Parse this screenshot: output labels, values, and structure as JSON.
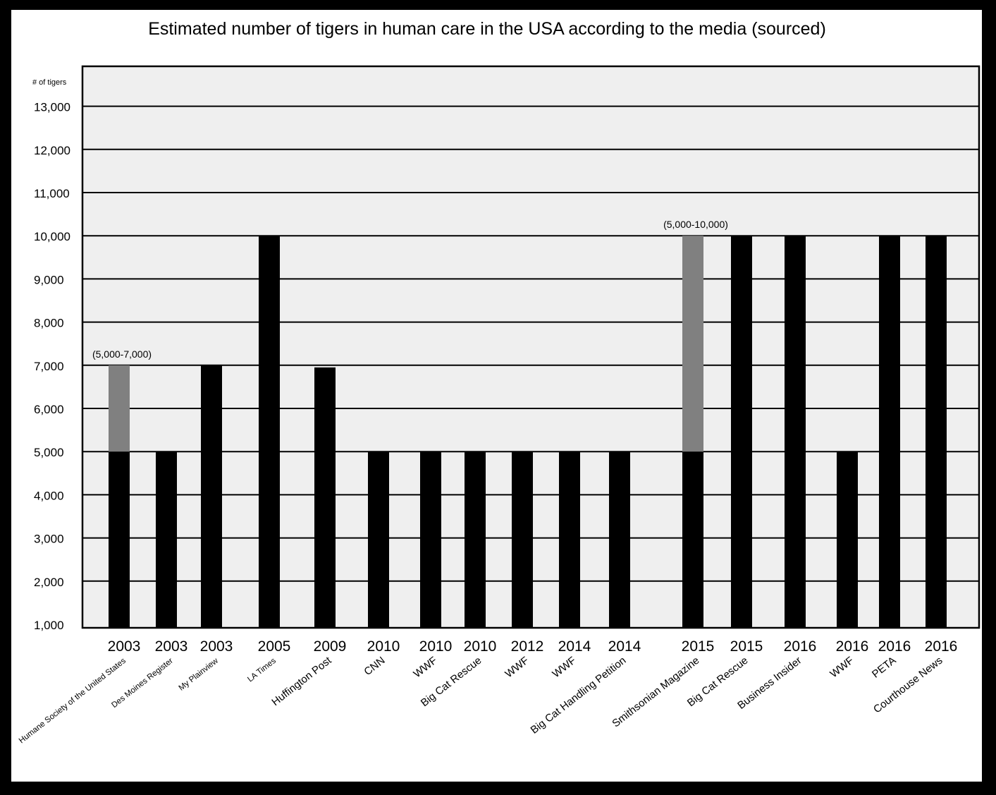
{
  "chart_data": {
    "type": "bar",
    "title": "Estimated number of tigers in human care in the USA according to the media (sourced)",
    "ylabel": "# of tigers",
    "ylim": [
      1000,
      14000
    ],
    "yticks": [
      "13,000",
      "12,000",
      "11,000",
      "10,000",
      "9,000",
      "8,000",
      "7,000",
      "6,000",
      "5,000",
      "4,000",
      "3,000",
      "2,000",
      "1,000"
    ],
    "ytick_values": [
      13000,
      12000,
      11000,
      10000,
      9000,
      8000,
      7000,
      6000,
      5000,
      4000,
      3000,
      2000,
      1000
    ],
    "grid": true,
    "bars": [
      {
        "year": "2003",
        "source": "Humane Society of the United States",
        "value": 5000,
        "range_top": 7000,
        "annotation": "(5,000-7,000)"
      },
      {
        "year": "2003",
        "source": "Des Moines Register",
        "value": 5000
      },
      {
        "year": "2003",
        "source": "My Plainview",
        "value": 7000
      },
      {
        "year": "2005",
        "source": "LA Times",
        "value": 10000
      },
      {
        "year": "2009",
        "source": "Huffington Post",
        "value": 6950
      },
      {
        "year": "2010",
        "source": "CNN",
        "value": 5000
      },
      {
        "year": "2010",
        "source": "WWF",
        "value": 5000
      },
      {
        "year": "2010",
        "source": "Big Cat Rescue",
        "value": 5000
      },
      {
        "year": "2012",
        "source": "WWF",
        "value": 5000
      },
      {
        "year": "2014",
        "source": "WWF",
        "value": 5000
      },
      {
        "year": "2014",
        "source": "Big Cat Handling Petition",
        "value": 5000
      },
      {
        "year": "2015",
        "source": "Smithsonian Magazine",
        "value": 5000,
        "range_top": 10000,
        "annotation": "(5,000-10,000)"
      },
      {
        "year": "2015",
        "source": "Big Cat Rescue",
        "value": 10000
      },
      {
        "year": "2016",
        "source": "Business Insider",
        "value": 10000
      },
      {
        "year": "2016",
        "source": "WWF",
        "value": 5000
      },
      {
        "year": "2016",
        "source": "PETA",
        "value": 10000
      },
      {
        "year": "2016",
        "source": "Courthouse News",
        "value": 10000
      }
    ],
    "colors": {
      "bar": "#000000",
      "range": "#808080",
      "plot_background": "#efefef",
      "gridline": "#000000",
      "frame": "#000000"
    }
  }
}
